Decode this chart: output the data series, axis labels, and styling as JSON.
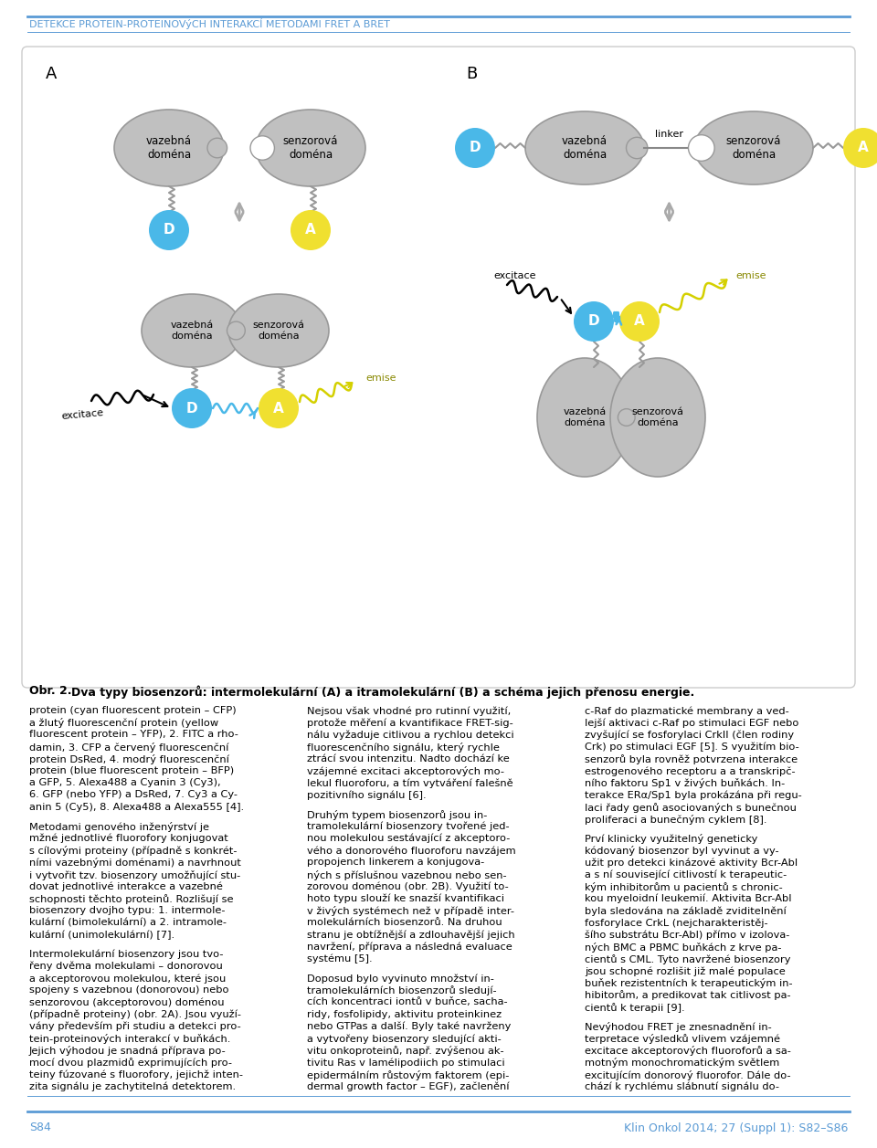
{
  "header_text": "DETEKCE PROTEIN-PROTEINOVýCH INTERAKCÍ METODAMI FRET A BRET",
  "header_color": "#5b9bd5",
  "bg_color": "#ffffff",
  "domain_fill": "#c0c0c0",
  "domain_stroke": "#999999",
  "donor_fill": "#4ab8e8",
  "acceptor_fill": "#f0e030",
  "footer_left": "S84",
  "footer_right": "Klin Onkol 2014; 27 (Suppl 1): S82–S86",
  "col1": "protein (cyan fluorescent protein – CFP)\na žlutý fluorescenční protein (yellow\nfluorescent protein – YFP), 2. FITC a rho-\ndamin, 3. CFP a červený fluorescenční\nprotein DsRed, 4. modrý fluorescenční\nprotein (blue fluorescent protein – BFP)\na GFP, 5. Alexa488 a Cyanin 3 (Cy3),\n6. GFP (nebo YFP) a DsRed, 7. Cy3 a Cy-\nanin 5 (Cy5), 8. Alexa488 a Alexa555 [4].\n\nMetodami genového inženýrství je\nmžné jednotlivé fluorofory konjugovat\ns cílovými proteiny (případně s konkrét-\nními vazebnými doménami) a navrhnout\ni vytvořit tzv. biosenzory umožňující stu-\ndovat jednotlivé interakce a vazebné\nschopnosti těchto proteinů. Rozlišují se\nbiosenzory dvojho typu: 1. intermole-\nkulární (bimolekulární) a 2. intramole-\nkulární (unimolekulární) [7].\n\nIntermolekulární biosenzory jsou tvo-\nřeny dvěma molekulami – donorovou\na akceptorovou molekulou, které jsou\nspojeny s vazebnou (donorovou) nebo\nsenzorovou (akceptorovou) doménou\n(případně proteiny) (obr. 2A). Jsou využí-\nvány především při studiu a detekci pro-\ntein-proteinových interakcí v buňkách.\nJejich výhodou je snadná příprava po-\nmocí dvou plazmidů exprimujících pro-\nteiny fúzované s fluorofory, jejichž inten-\nzita signálu je zachytitelná detektorem.",
  "col2": "Nejsou však vhodné pro rutinní využití,\nprotože měření a kvantifikace FRET-sig-\nnálu vyžaduje citlivou a rychlou detekci\nfluorescenčního signálu, který rychle\nztrácí svou intenzitu. Nadto dochází ke\nvzájemné excitaci akceptorových mo-\nlekul fluoroforu, a tím vytváření falešně\npozitivního signálu [6].\n\nDruhým typem biosenzorů jsou in-\ntramolekulární biosenzory tvořené jed-\nnou molekulou sestávající z akceptoro-\nvého a donorového fluoroforu navzájem\npropojench linkerem a konjugova-\nných s příslušnou vazebnou nebo sen-\nzorovou doménou (obr. 2B). Využití to-\nhoto typu slouží ke snazší kvantifikaci\nv živých systémech než v případě inter-\nmolekulárních biosenzorů. Na druhou\nstranu je obtížnější a zdlouhavější jejich\nnavržení, příprava a následná evaluace\nsystému [5].\n\nDoposud bylo vyvinuto množství in-\ntramolekulárních biosenzorů sledují-\ncích koncentraci iontů v buňce, sacha-\nridy, fosfolipidy, aktivitu proteinkinez\nnebo GTPas a další. Byly také navrženy\na vytvořeny biosenzory sledující akti-\nvitu onkoproteinů, např. zvýšenou ak-\ntivitu Ras v lamélipodiich po stimulaci\nepidermálním růstovým faktorem (epi-\ndermal growth factor – EGF), začlenění",
  "col3": "c-Raf do plazmatické membrany a ved-\nlejší aktivaci c-Raf po stimulaci EGF nebo\nzvyšující se fosforylaci CrkII (člen rodiny\nCrk) po stimulaci EGF [5]. S využitím bio-\nsenzorů byla rovněž potvrzena interakce\nestrogenového receptoru a a transkripč-\nního faktoru Sp1 v živých buňkách. In-\nterakce ERα/Sp1 byla prokázána při regu-\nlaci řady genů asociovaných s bunečnou\nproliferaci a bunečným cyklem [8].\n\nPrví klinicky využitelný geneticky\nkódovaný biosenzor byl vyvinut a vy-\nužit pro detekci kinázové aktivity Bcr-Abl\na s ní související citlivostí k terapeutic-\nkým inhibitorům u pacientů s chronic-\nkou myeloidní leukemií. Aktivita Bcr-Abl\nbyla sledována na základě zviditelnění\nfosforylace CrkL (nejcharakteristěj-\nšího substrátu Bcr-Abl) přímo v izolova-\nných BMC a PBMC buňkách z krve pa-\ncientů s CML. Tyto navržené biosenzory\njsou schopné rozlišit již malé populace\nbuňek rezistentních k terapeutickým in-\nhibitorům, a predikovat tak citlivost pa-\ncientů k terapii [9].\n\nNevýhodou FRET je znesnadnění in-\nterpretace výsledků vlivem vzájemné\nexcitace akceptorových fluoroforů a sa-\nmotným monochromatickým světlem\nexcitujícím donorový fluorofor. Dále do-\nchází k rychlému slábnutí signálu do-"
}
